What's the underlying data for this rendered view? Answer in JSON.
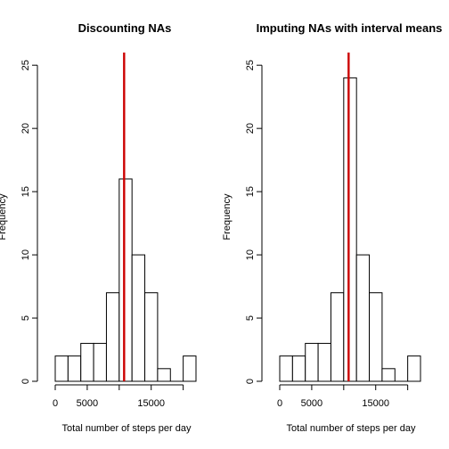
{
  "chart_data": [
    {
      "type": "bar",
      "subtype": "histogram",
      "title": "Discounting NAs",
      "xlabel": "Total number of steps per day",
      "ylabel": "Frequency",
      "bin_width": 2000,
      "bins": [
        {
          "start": 0,
          "end": 2000,
          "count": 2
        },
        {
          "start": 2000,
          "end": 4000,
          "count": 2
        },
        {
          "start": 4000,
          "end": 6000,
          "count": 3
        },
        {
          "start": 6000,
          "end": 8000,
          "count": 3
        },
        {
          "start": 8000,
          "end": 10000,
          "count": 7
        },
        {
          "start": 10000,
          "end": 12000,
          "count": 16
        },
        {
          "start": 12000,
          "end": 14000,
          "count": 10
        },
        {
          "start": 14000,
          "end": 16000,
          "count": 7
        },
        {
          "start": 16000,
          "end": 18000,
          "count": 1
        },
        {
          "start": 18000,
          "end": 20000,
          "count": 0
        },
        {
          "start": 20000,
          "end": 22000,
          "count": 2
        }
      ],
      "xticks": [
        0,
        5000,
        15000
      ],
      "xtick_labels": [
        "0",
        "5000",
        "15000"
      ],
      "xaxis_line": [
        0,
        20000
      ],
      "xlim": [
        0,
        22000
      ],
      "yticks": [
        0,
        5,
        10,
        15,
        20,
        25
      ],
      "ylim": [
        0,
        26
      ],
      "mean_line": {
        "x": 10766,
        "color": "#cc0000"
      },
      "bar_color": "#ffffff",
      "edge_color": "#000000",
      "grid": false
    },
    {
      "type": "bar",
      "subtype": "histogram",
      "title": "Imputing NAs with interval means",
      "xlabel": "Total number of steps per day",
      "ylabel": "Frequency",
      "bin_width": 2000,
      "bins": [
        {
          "start": 0,
          "end": 2000,
          "count": 2
        },
        {
          "start": 2000,
          "end": 4000,
          "count": 2
        },
        {
          "start": 4000,
          "end": 6000,
          "count": 3
        },
        {
          "start": 6000,
          "end": 8000,
          "count": 3
        },
        {
          "start": 8000,
          "end": 10000,
          "count": 7
        },
        {
          "start": 10000,
          "end": 12000,
          "count": 24
        },
        {
          "start": 12000,
          "end": 14000,
          "count": 10
        },
        {
          "start": 14000,
          "end": 16000,
          "count": 7
        },
        {
          "start": 16000,
          "end": 18000,
          "count": 1
        },
        {
          "start": 18000,
          "end": 20000,
          "count": 0
        },
        {
          "start": 20000,
          "end": 22000,
          "count": 2
        }
      ],
      "xticks": [
        0,
        5000,
        15000
      ],
      "xtick_labels": [
        "0",
        "5000",
        "15000"
      ],
      "xaxis_line": [
        0,
        20000
      ],
      "xlim": [
        0,
        22000
      ],
      "yticks": [
        0,
        5,
        10,
        15,
        20,
        25
      ],
      "ylim": [
        0,
        26
      ],
      "mean_line": {
        "x": 10766,
        "color": "#cc0000"
      },
      "bar_color": "#ffffff",
      "edge_color": "#000000",
      "grid": false
    }
  ]
}
